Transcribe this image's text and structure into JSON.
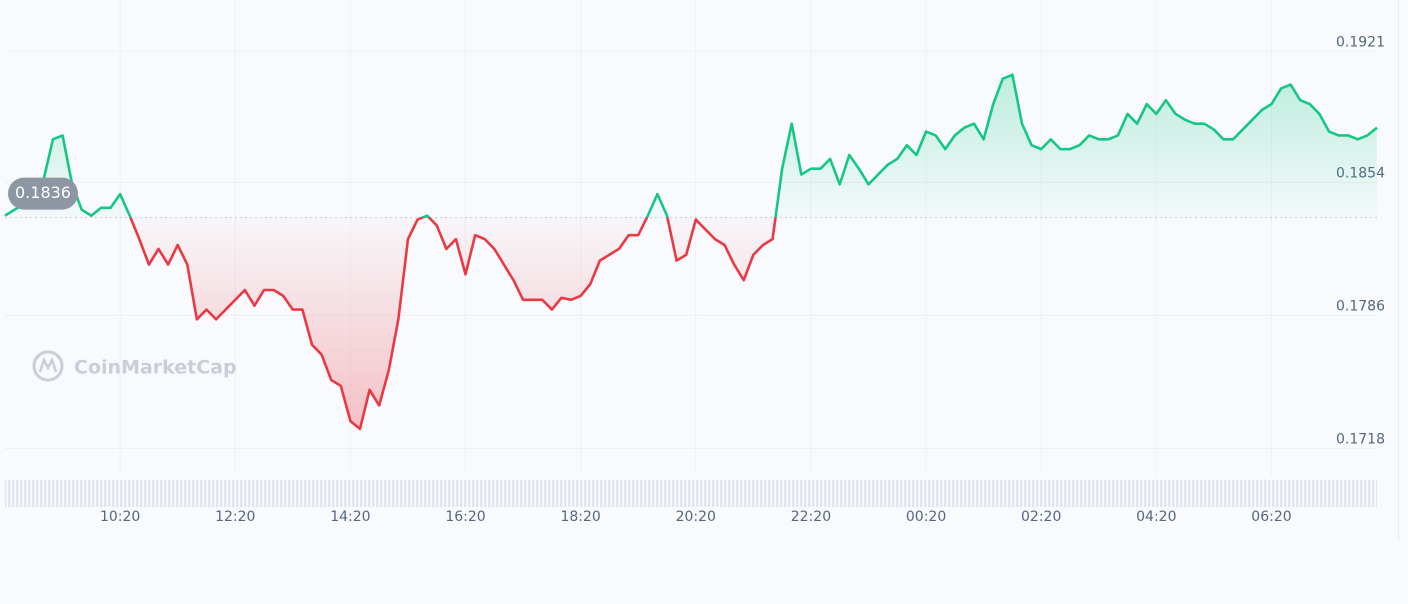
{
  "chart_data": {
    "type": "line",
    "watermark": "CoinMarketCap",
    "baseline": 0.1836,
    "color_up": "#16c784",
    "color_down": "#ea3943",
    "grid": true,
    "ylim": [
      0.1707,
      0.1937
    ],
    "yticks": [
      0.1921,
      0.1854,
      0.1786,
      0.1718
    ],
    "categories": [
      null,
      null,
      null,
      null,
      null,
      null,
      null,
      null,
      null,
      null,
      null,
      null,
      "10:20",
      null,
      null,
      null,
      null,
      null,
      null,
      null,
      null,
      null,
      null,
      null,
      "12:20",
      null,
      null,
      null,
      null,
      null,
      null,
      null,
      null,
      null,
      null,
      null,
      "14:20",
      null,
      null,
      null,
      null,
      null,
      null,
      null,
      null,
      null,
      null,
      null,
      "16:20",
      null,
      null,
      null,
      null,
      null,
      null,
      null,
      null,
      null,
      null,
      null,
      "18:20",
      null,
      null,
      null,
      null,
      null,
      null,
      null,
      null,
      null,
      null,
      null,
      "20:20",
      null,
      null,
      null,
      null,
      null,
      null,
      null,
      null,
      null,
      null,
      null,
      "22:20",
      null,
      null,
      null,
      null,
      null,
      null,
      null,
      null,
      null,
      null,
      null,
      "00:20",
      null,
      null,
      null,
      null,
      null,
      null,
      null,
      null,
      null,
      null,
      null,
      "02:20",
      null,
      null,
      null,
      null,
      null,
      null,
      null,
      null,
      null,
      null,
      null,
      "04:20",
      null,
      null,
      null,
      null,
      null,
      null,
      null,
      null,
      null,
      null,
      null,
      "06:20",
      null,
      null,
      null,
      null,
      null,
      null,
      null,
      null,
      null,
      null,
      null
    ],
    "values": [
      0.1837,
      0.184,
      0.1843,
      0.185,
      0.1855,
      0.1876,
      0.1878,
      0.1853,
      0.184,
      0.1837,
      0.1841,
      0.1841,
      0.1848,
      0.1837,
      0.1825,
      0.1812,
      0.182,
      0.1812,
      0.1822,
      0.1812,
      0.1784,
      0.1789,
      0.1784,
      0.1789,
      0.1794,
      0.1799,
      0.1791,
      0.1799,
      0.1799,
      0.1796,
      0.1789,
      0.1789,
      0.1771,
      0.1766,
      0.1753,
      0.175,
      0.1732,
      0.1728,
      0.1748,
      0.174,
      0.1758,
      0.1784,
      0.1825,
      0.1835,
      0.1837,
      0.1832,
      0.182,
      0.1825,
      0.1807,
      0.1827,
      0.1825,
      0.182,
      0.1812,
      0.1804,
      0.1794,
      0.1794,
      0.1794,
      0.1789,
      0.1795,
      0.1794,
      0.1796,
      0.1802,
      0.1814,
      0.1817,
      0.182,
      0.1827,
      0.1827,
      0.1837,
      0.1848,
      0.1837,
      0.1814,
      0.1817,
      0.1835,
      0.183,
      0.1825,
      0.1822,
      0.1812,
      0.1804,
      0.1817,
      0.1822,
      0.1825,
      0.1861,
      0.1884,
      0.1858,
      0.1861,
      0.1861,
      0.1866,
      0.1853,
      0.1868,
      0.1861,
      0.1853,
      0.1858,
      0.1863,
      0.1866,
      0.1873,
      0.1868,
      0.188,
      0.1878,
      0.1871,
      0.1878,
      0.1882,
      0.1884,
      0.1876,
      0.1894,
      0.1907,
      0.1909,
      0.1884,
      0.1873,
      0.1871,
      0.1876,
      0.1871,
      0.1871,
      0.1873,
      0.1878,
      0.1876,
      0.1876,
      0.1878,
      0.1889,
      0.1884,
      0.1894,
      0.1889,
      0.1896,
      0.1889,
      0.1886,
      0.1884,
      0.1884,
      0.1881,
      0.1876,
      0.1876,
      0.1881,
      0.1886,
      0.1891,
      0.1894,
      0.1902,
      0.1904,
      0.1896,
      0.1894,
      0.1889,
      0.188,
      0.1878,
      0.1878,
      0.1876,
      0.1878,
      0.1882
    ]
  }
}
